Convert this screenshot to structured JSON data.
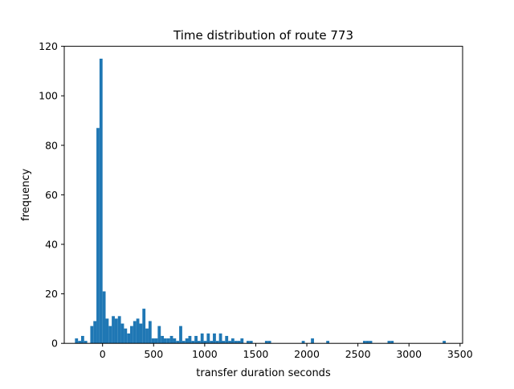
{
  "chart_data": {
    "type": "bar",
    "title": "Time distribution of route 773",
    "xlabel": "transfer duration seconds",
    "ylabel": "frequency",
    "xlim": [
      -375,
      3525
    ],
    "ylim": [
      0,
      120
    ],
    "x_ticks": [
      0,
      500,
      1000,
      1500,
      2000,
      2500,
      3000,
      3500
    ],
    "y_ticks": [
      0,
      20,
      40,
      60,
      80,
      100,
      120
    ],
    "bin_width": 30,
    "bar_color": "#1f77b4",
    "grid": false,
    "bins": [
      {
        "x": -270,
        "count": 2
      },
      {
        "x": -240,
        "count": 1
      },
      {
        "x": -210,
        "count": 3
      },
      {
        "x": -180,
        "count": 1
      },
      {
        "x": -120,
        "count": 7
      },
      {
        "x": -90,
        "count": 9
      },
      {
        "x": -60,
        "count": 87
      },
      {
        "x": -30,
        "count": 115
      },
      {
        "x": 0,
        "count": 21
      },
      {
        "x": 30,
        "count": 10
      },
      {
        "x": 60,
        "count": 7
      },
      {
        "x": 90,
        "count": 11
      },
      {
        "x": 120,
        "count": 10
      },
      {
        "x": 150,
        "count": 11
      },
      {
        "x": 180,
        "count": 8
      },
      {
        "x": 210,
        "count": 6
      },
      {
        "x": 240,
        "count": 4
      },
      {
        "x": 270,
        "count": 7
      },
      {
        "x": 300,
        "count": 9
      },
      {
        "x": 330,
        "count": 10
      },
      {
        "x": 360,
        "count": 8
      },
      {
        "x": 390,
        "count": 14
      },
      {
        "x": 420,
        "count": 6
      },
      {
        "x": 450,
        "count": 9
      },
      {
        "x": 480,
        "count": 2
      },
      {
        "x": 510,
        "count": 2
      },
      {
        "x": 540,
        "count": 7
      },
      {
        "x": 570,
        "count": 3
      },
      {
        "x": 600,
        "count": 2
      },
      {
        "x": 630,
        "count": 2
      },
      {
        "x": 660,
        "count": 3
      },
      {
        "x": 690,
        "count": 2
      },
      {
        "x": 720,
        "count": 1
      },
      {
        "x": 750,
        "count": 7
      },
      {
        "x": 780,
        "count": 1
      },
      {
        "x": 810,
        "count": 2
      },
      {
        "x": 840,
        "count": 3
      },
      {
        "x": 870,
        "count": 1
      },
      {
        "x": 900,
        "count": 3
      },
      {
        "x": 930,
        "count": 1
      },
      {
        "x": 960,
        "count": 4
      },
      {
        "x": 990,
        "count": 1
      },
      {
        "x": 1020,
        "count": 4
      },
      {
        "x": 1050,
        "count": 1
      },
      {
        "x": 1080,
        "count": 4
      },
      {
        "x": 1110,
        "count": 1
      },
      {
        "x": 1140,
        "count": 4
      },
      {
        "x": 1170,
        "count": 1
      },
      {
        "x": 1200,
        "count": 3
      },
      {
        "x": 1230,
        "count": 1
      },
      {
        "x": 1260,
        "count": 2
      },
      {
        "x": 1290,
        "count": 1
      },
      {
        "x": 1320,
        "count": 1
      },
      {
        "x": 1350,
        "count": 2
      },
      {
        "x": 1410,
        "count": 1
      },
      {
        "x": 1440,
        "count": 1
      },
      {
        "x": 1590,
        "count": 1
      },
      {
        "x": 1620,
        "count": 1
      },
      {
        "x": 1950,
        "count": 1
      },
      {
        "x": 2040,
        "count": 2
      },
      {
        "x": 2190,
        "count": 1
      },
      {
        "x": 2550,
        "count": 1
      },
      {
        "x": 2580,
        "count": 1
      },
      {
        "x": 2610,
        "count": 1
      },
      {
        "x": 2790,
        "count": 1
      },
      {
        "x": 2820,
        "count": 1
      },
      {
        "x": 3330,
        "count": 1
      }
    ]
  }
}
